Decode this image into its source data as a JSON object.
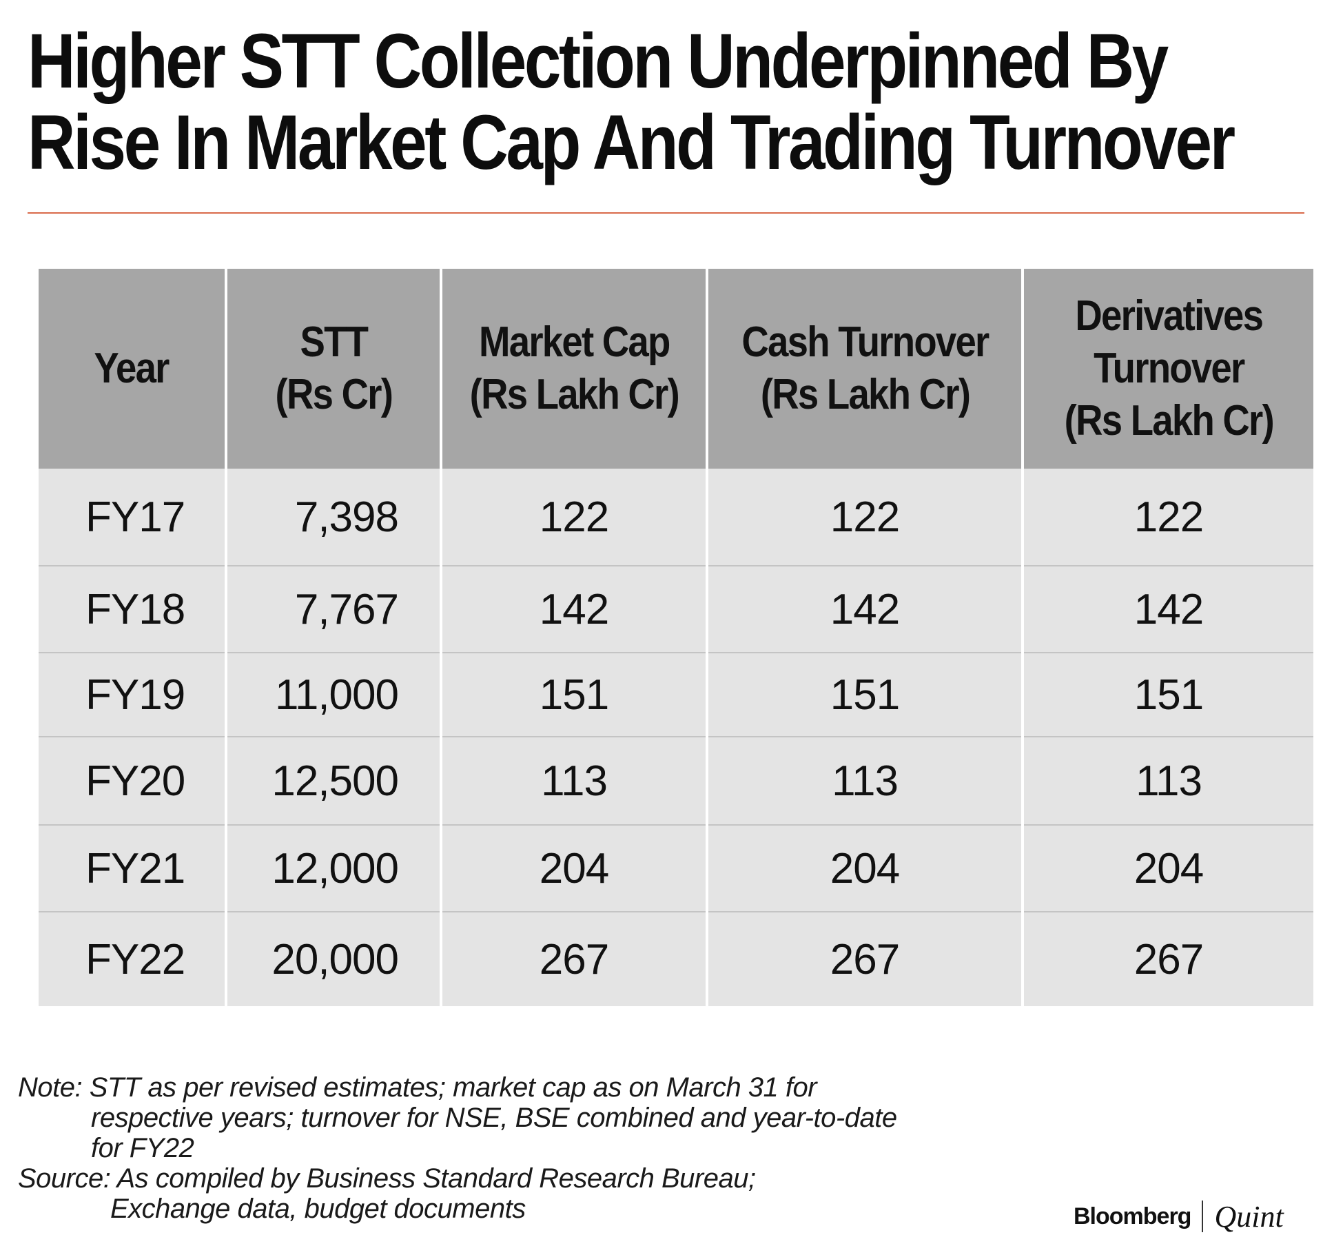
{
  "title": {
    "line1": "Higher STT Collection Underpinned By",
    "line2": "Rise In Market Cap And Trading Turnover"
  },
  "table": {
    "headers": [
      [
        "Year"
      ],
      [
        "STT",
        "(Rs Cr)"
      ],
      [
        "Market Cap",
        "(Rs Lakh Cr)"
      ],
      [
        "Cash Turnover",
        "(Rs Lakh Cr)"
      ],
      [
        "Derivatives",
        "Turnover",
        "(Rs Lakh Cr)"
      ]
    ],
    "rows": [
      [
        "FY17",
        "7,398",
        "122",
        "122",
        "122"
      ],
      [
        "FY18",
        "7,767",
        "142",
        "142",
        "142"
      ],
      [
        "FY19",
        "11,000",
        "151",
        "151",
        "151"
      ],
      [
        "FY20",
        "12,500",
        "113",
        "113",
        "113"
      ],
      [
        "FY21",
        "12,000",
        "204",
        "204",
        "204"
      ],
      [
        "FY22",
        "20,000",
        "267",
        "267",
        "267"
      ]
    ]
  },
  "notes": {
    "note_lines": [
      "Note: STT as per revised estimates; market cap as on March 31 for",
      "respective years; turnover for NSE, BSE combined and year-to-date",
      "for FY22"
    ],
    "source_lines": [
      "Source: As compiled by Business Standard Research Bureau;",
      "Exchange data, budget documents"
    ]
  },
  "logo": {
    "brand1": "Bloomberg",
    "brand2": "Quint"
  },
  "colors": {
    "header_bg": "#a6a6a6",
    "row_bg": "#e4e4e4",
    "rule": "#d96a4a"
  }
}
